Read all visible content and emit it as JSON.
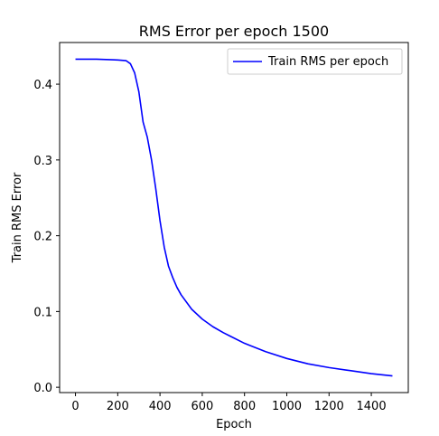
{
  "chart_data": {
    "type": "line",
    "title": "RMS Error per epoch 1500",
    "xlabel": "Epoch",
    "ylabel": "Train RMS Error",
    "xlim": [
      -75,
      1575
    ],
    "ylim": [
      -0.007,
      0.455
    ],
    "xticks": [
      0,
      200,
      400,
      600,
      800,
      1000,
      1200,
      1400
    ],
    "yticks": [
      0.0,
      0.1,
      0.2,
      0.3,
      0.4
    ],
    "ytick_labels": [
      "0.0",
      "0.1",
      "0.2",
      "0.3",
      "0.4"
    ],
    "grid": false,
    "legend_position": "top-right",
    "series": [
      {
        "name": "Train RMS per epoch",
        "color": "#0000ff",
        "x": [
          0,
          100,
          200,
          240,
          260,
          280,
          300,
          320,
          340,
          360,
          380,
          400,
          420,
          440,
          460,
          480,
          500,
          550,
          600,
          650,
          700,
          800,
          900,
          1000,
          1100,
          1200,
          1300,
          1400,
          1500
        ],
        "y": [
          0.433,
          0.433,
          0.432,
          0.431,
          0.427,
          0.415,
          0.39,
          0.35,
          0.33,
          0.3,
          0.262,
          0.22,
          0.185,
          0.16,
          0.145,
          0.132,
          0.122,
          0.103,
          0.09,
          0.08,
          0.072,
          0.058,
          0.047,
          0.038,
          0.031,
          0.026,
          0.022,
          0.018,
          0.015
        ]
      }
    ]
  }
}
